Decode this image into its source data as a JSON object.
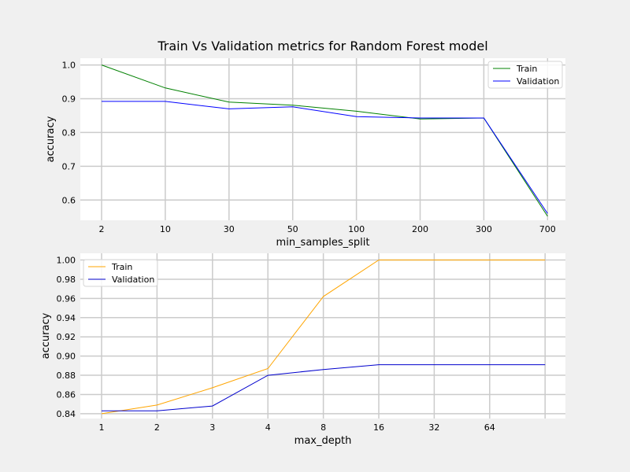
{
  "figure": {
    "title": "Train Vs Validation metrics for Random Forest model",
    "background": "#f0f0f0",
    "plot_background": "#ffffff",
    "grid_color": "#cbcbcb"
  },
  "chart_data": [
    {
      "type": "line",
      "xlabel": "min_samples_split",
      "ylabel": "accuracy",
      "categories": [
        "2",
        "10",
        "30",
        "50",
        "100",
        "200",
        "300",
        "700"
      ],
      "ylim": [
        0.54,
        1.02
      ],
      "yticks": [
        0.6,
        0.7,
        0.8,
        0.9,
        1.0
      ],
      "ytick_labels": [
        "0.6",
        "0.7",
        "0.8",
        "0.9",
        "1.0"
      ],
      "grid": true,
      "legend_position": "top-right",
      "series": [
        {
          "name": "Train",
          "color": "#008000",
          "values": [
            1.0,
            0.932,
            0.89,
            0.881,
            0.863,
            0.84,
            0.843,
            0.552
          ]
        },
        {
          "name": "Validation",
          "color": "#0000ff",
          "values": [
            0.892,
            0.892,
            0.87,
            0.876,
            0.847,
            0.843,
            0.843,
            0.56
          ]
        }
      ]
    },
    {
      "type": "line",
      "xlabel": "max_depth",
      "ylabel": "accuracy",
      "categories": [
        "1",
        "2",
        "3",
        "4",
        "8",
        "16",
        "32",
        "64",
        ""
      ],
      "ylim": [
        0.835,
        1.007
      ],
      "yticks": [
        0.84,
        0.86,
        0.88,
        0.9,
        0.92,
        0.94,
        0.96,
        0.98,
        1.0
      ],
      "ytick_labels": [
        "0.84",
        "0.86",
        "0.88",
        "0.90",
        "0.92",
        "0.94",
        "0.96",
        "0.98",
        "1.00"
      ],
      "grid": true,
      "legend_position": "top-left",
      "series": [
        {
          "name": "Train",
          "color": "#ffa500",
          "values": [
            0.84,
            0.849,
            0.867,
            0.887,
            0.962,
            1.0,
            1.0,
            1.0,
            1.0
          ]
        },
        {
          "name": "Validation",
          "color": "#0000cd",
          "values": [
            0.843,
            0.843,
            0.848,
            0.88,
            0.886,
            0.891,
            0.891,
            0.891,
            0.891
          ]
        }
      ]
    }
  ]
}
